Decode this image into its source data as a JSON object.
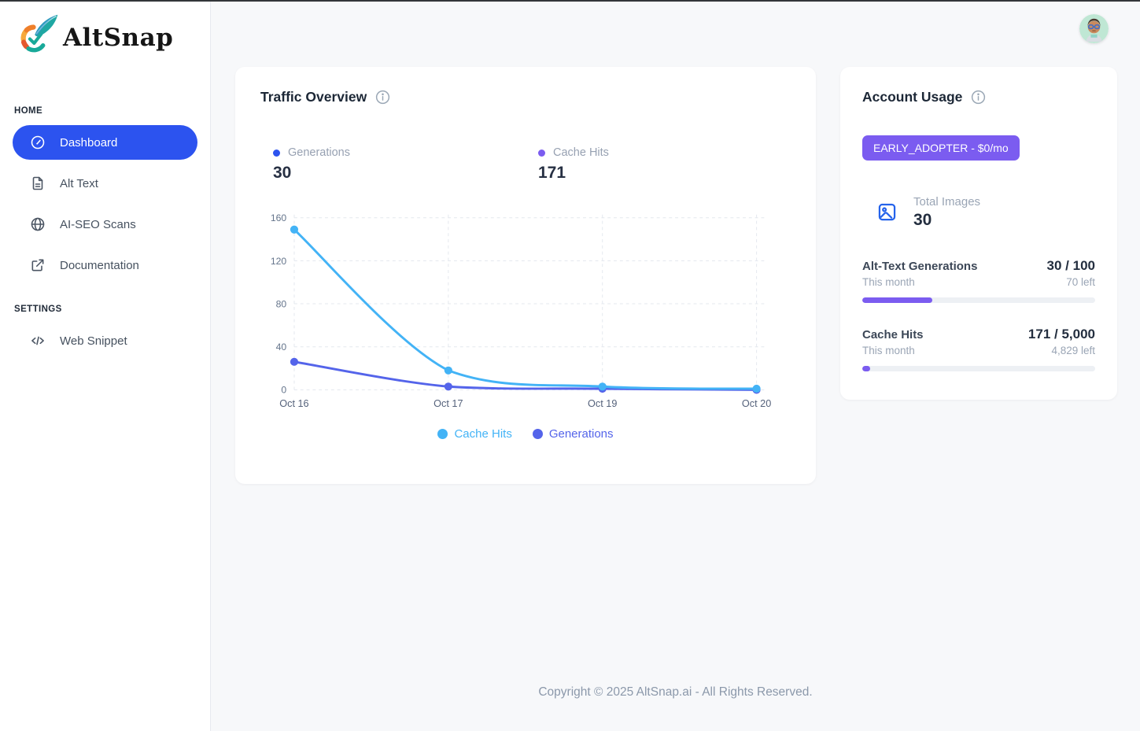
{
  "app": {
    "name": "AltSnap"
  },
  "sidebar": {
    "sections": [
      {
        "label": "HOME",
        "items": [
          {
            "label": "Dashboard",
            "icon": "gauge-icon",
            "active": true
          },
          {
            "label": "Alt Text",
            "icon": "document-icon",
            "active": false
          },
          {
            "label": "AI-SEO Scans",
            "icon": "globe-icon",
            "active": false
          },
          {
            "label": "Documentation",
            "icon": "external-link-icon",
            "active": false
          }
        ]
      },
      {
        "label": "SETTINGS",
        "items": [
          {
            "label": "Web Snippet",
            "icon": "code-icon",
            "active": false
          }
        ]
      }
    ]
  },
  "traffic": {
    "title": "Traffic Overview",
    "stats": [
      {
        "label": "Generations",
        "value": "30",
        "dot_style": "background:#2c53ef"
      },
      {
        "label": "Cache Hits",
        "value": "171",
        "dot_style": "background:#7b5cf0"
      }
    ]
  },
  "chart_data": {
    "type": "line",
    "x": [
      "Oct 16",
      "Oct 17",
      "Oct 19",
      "Oct 20"
    ],
    "series": [
      {
        "name": "Cache Hits",
        "values": [
          149,
          18,
          3,
          1
        ],
        "color": "#43b3f6"
      },
      {
        "name": "Generations",
        "values": [
          26,
          3,
          1,
          0
        ],
        "color": "#5464ea"
      }
    ],
    "title": "Traffic Overview",
    "xlabel": "",
    "ylabel": "",
    "ylim": [
      0,
      160
    ],
    "yticks": [
      0,
      40,
      80,
      120,
      160
    ],
    "grid": "dashed",
    "legend_position": "bottom"
  },
  "account": {
    "title": "Account Usage",
    "plan_badge": "EARLY_ADOPTER - $0/mo",
    "accent_color": "#7b5cf0",
    "total_images": {
      "label": "Total Images",
      "value": "30"
    },
    "meters": [
      {
        "name": "Alt-Text Generations",
        "usage": "30 / 100",
        "period": "This month",
        "remaining": "70 left",
        "percent": 30,
        "fill_style": "width:30%"
      },
      {
        "name": "Cache Hits",
        "usage": "171 / 5,000",
        "period": "This month",
        "remaining": "4,829 left",
        "percent": 3.42,
        "fill_style": "width:3.42%"
      }
    ]
  },
  "footer": {
    "copyright": "Copyright © 2025 AltSnap.ai - All Rights Reserved."
  }
}
